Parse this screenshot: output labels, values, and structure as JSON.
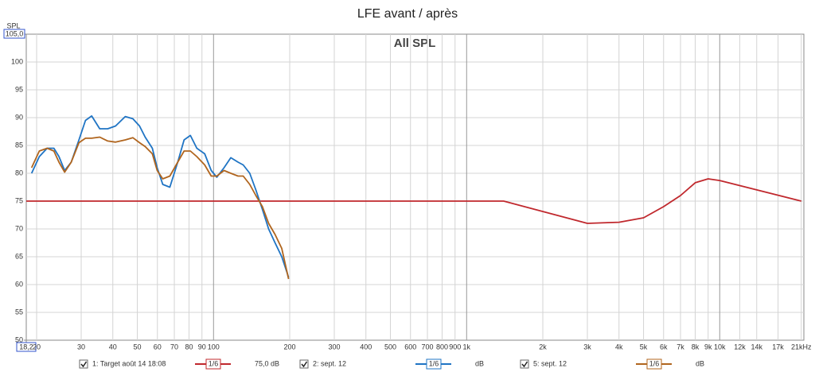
{
  "chart_data": {
    "type": "line",
    "title": "LFE avant / après",
    "subtitle": "All SPL",
    "y_label": "SPL",
    "log_x": true,
    "grid": true,
    "xlim": [
      18.2,
      21500
    ],
    "ylim": [
      50,
      105
    ],
    "yticks": [
      50,
      55,
      60,
      65,
      70,
      75,
      80,
      85,
      90,
      95,
      100,
      {
        "value": 105,
        "label": "105,0"
      }
    ],
    "xticks": [
      {
        "value": 18.2,
        "label": "18,2"
      },
      20,
      30,
      40,
      50,
      60,
      70,
      80,
      90,
      100,
      200,
      300,
      400,
      500,
      600,
      700,
      800,
      900,
      {
        "value": 1000,
        "label": "1k"
      },
      {
        "value": 2000,
        "label": "2k"
      },
      {
        "value": 3000,
        "label": "3k"
      },
      {
        "value": 4000,
        "label": "4k"
      },
      {
        "value": 5000,
        "label": "5k"
      },
      {
        "value": 6000,
        "label": "6k"
      },
      {
        "value": 7000,
        "label": "7k"
      },
      {
        "value": 8000,
        "label": "8k"
      },
      {
        "value": 9000,
        "label": "9k"
      },
      {
        "value": 10000,
        "label": "10k"
      },
      {
        "value": 12000,
        "label": "12k"
      },
      {
        "value": 14000,
        "label": "14k"
      },
      {
        "value": 17000,
        "label": "17k"
      },
      {
        "value": 21000,
        "label": "21kHz"
      }
    ],
    "series": [
      {
        "name": "1: Target août 14 18:08",
        "color": "#c0282d",
        "smoothing": "1/6",
        "level": "75,0 dB",
        "x": [
          18.2,
          1400,
          3000,
          4000,
          5000,
          6000,
          7000,
          8000,
          9000,
          10000,
          21000
        ],
        "values": [
          75,
          75,
          71,
          71.2,
          72,
          74,
          76,
          78.3,
          79,
          78.7,
          75
        ]
      },
      {
        "name": "2: sept. 12",
        "color": "#1f74c4",
        "smoothing": "1/6",
        "level": "dB",
        "x": [
          19.1,
          20.5,
          22,
          23.4,
          24.5,
          25.8,
          27.4,
          29.4,
          31.2,
          33,
          35.5,
          38.2,
          41,
          44.8,
          48,
          51,
          53.7,
          57.3,
          59.9,
          63,
          67.2,
          72.2,
          76.5,
          81,
          85.9,
          92.3,
          97.9,
          103,
          110,
          117,
          125,
          131,
          139,
          147,
          156,
          165,
          175,
          186,
          198
        ],
        "values": [
          80,
          83,
          84.5,
          84.5,
          83,
          80.5,
          82,
          86,
          89.5,
          90.3,
          88,
          88,
          88.5,
          90.2,
          89.8,
          88.5,
          86.5,
          84.5,
          81,
          78,
          77.5,
          82,
          86,
          86.8,
          84.5,
          83.5,
          80.5,
          79.3,
          81,
          82.8,
          82,
          81.5,
          80,
          77,
          73.5,
          70,
          67.5,
          65,
          61.3
        ]
      },
      {
        "name": "5: sept. 12",
        "color": "#b0651e",
        "smoothing": "1/6",
        "level": "dB",
        "x": [
          19.1,
          20.5,
          22,
          23.4,
          24.5,
          25.8,
          27.4,
          29.4,
          31.2,
          33,
          35.5,
          38.2,
          41,
          44.8,
          48,
          51,
          53.7,
          57.3,
          59.9,
          63,
          67.2,
          72.2,
          76.5,
          81,
          85.9,
          92.3,
          97.9,
          103,
          110,
          117,
          125,
          131,
          139,
          147,
          156,
          165,
          175,
          186,
          198
        ],
        "values": [
          81,
          84,
          84.5,
          84,
          82,
          80.2,
          82,
          85.5,
          86.3,
          86.3,
          86.5,
          85.8,
          85.6,
          86,
          86.4,
          85.5,
          84.8,
          83.5,
          80.5,
          79,
          79.5,
          82,
          84,
          84,
          83,
          81.5,
          79.5,
          79.5,
          80.5,
          80,
          79.5,
          79.5,
          78,
          76,
          74,
          71,
          69,
          66.5,
          61
        ]
      }
    ]
  }
}
